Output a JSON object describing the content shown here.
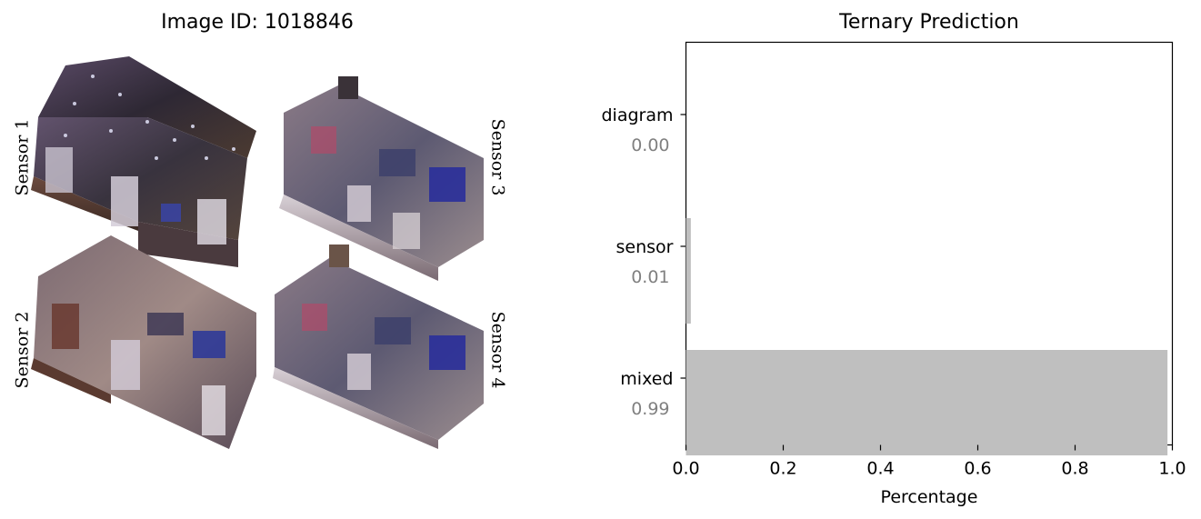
{
  "left_panel": {
    "title": "Image ID: 1018846",
    "sensor_labels": [
      "Sensor 1",
      "Sensor 2",
      "Sensor 3",
      "Sensor 4"
    ]
  },
  "chart_data": {
    "type": "bar",
    "orientation": "horizontal",
    "title": "Ternary Prediction",
    "categories": [
      "diagram",
      "sensor",
      "mixed"
    ],
    "values": [
      0.0,
      0.01,
      0.99
    ],
    "value_labels": [
      "0.00",
      "0.01",
      "0.99"
    ],
    "xlabel": "Percentage",
    "xlim": [
      0.0,
      1.0
    ],
    "xticks": [
      "0.0",
      "0.2",
      "0.4",
      "0.6",
      "0.8",
      "1.0"
    ],
    "bar_color": "#bfbfbf",
    "value_label_color": "#808080",
    "grid": false
  }
}
